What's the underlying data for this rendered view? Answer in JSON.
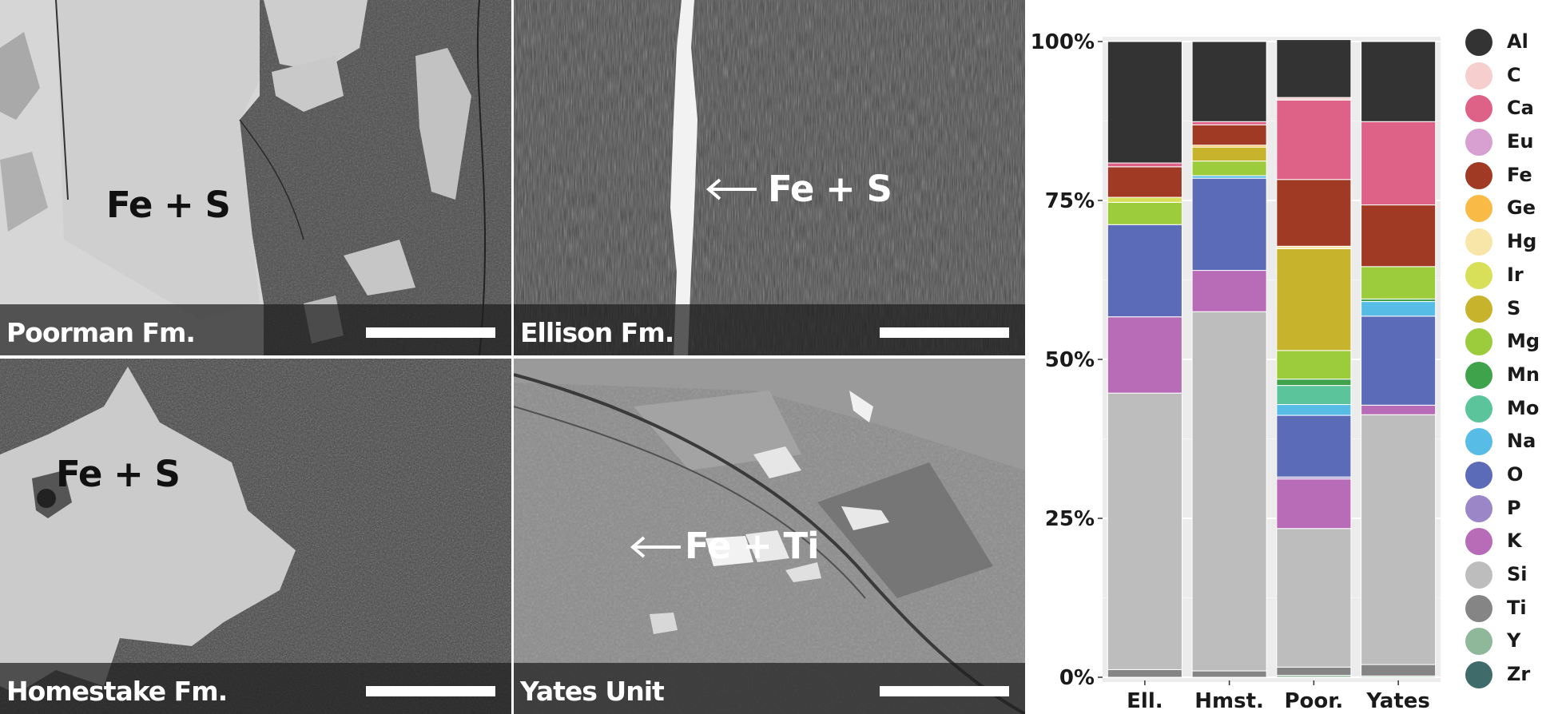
{
  "panels": [
    {
      "id": "poorman",
      "caption": "Poorman Fm.",
      "label": "Fe + S",
      "arrow": false
    },
    {
      "id": "ellison",
      "caption": "Ellison Fm.",
      "label": "Fe + S",
      "arrow": true
    },
    {
      "id": "homestake",
      "caption": "Homestake Fm.",
      "label": "Fe + S",
      "arrow": false
    },
    {
      "id": "yates",
      "caption": "Yates Unit",
      "label": "Fe + Ti",
      "arrow": true
    }
  ],
  "chart_data": {
    "type": "bar",
    "stacked": true,
    "normalized": true,
    "categories": [
      "Ell.",
      "Hmst.",
      "Poor.",
      "Yates"
    ],
    "ylim": [
      0,
      100
    ],
    "yticks": [
      0,
      25,
      50,
      75,
      100
    ],
    "ytick_labels": [
      "0%",
      "25%",
      "50%",
      "75%",
      "100%"
    ],
    "grid": true,
    "legend_position": "right",
    "series": [
      {
        "name": "Zr",
        "color": "#3f6b6b",
        "values": [
          0,
          0,
          0,
          0
        ]
      },
      {
        "name": "Y",
        "color": "#8fb89a",
        "values": [
          0,
          0,
          0.3,
          0.2
        ]
      },
      {
        "name": "Ti",
        "color": "#858585",
        "values": [
          1.2,
          1.0,
          1.3,
          1.8
        ]
      },
      {
        "name": "Si",
        "color": "#bdbdbd",
        "values": [
          43.5,
          56.5,
          21.8,
          39.3
        ]
      },
      {
        "name": "K",
        "color": "#b86cb8",
        "values": [
          12.0,
          6.5,
          7.8,
          1.5
        ]
      },
      {
        "name": "P",
        "color": "#9b87c8",
        "values": [
          0,
          0,
          0.3,
          0
        ]
      },
      {
        "name": "O",
        "color": "#5b6bb8",
        "values": [
          14.5,
          14.5,
          9.7,
          14.0
        ]
      },
      {
        "name": "Na",
        "color": "#58bde6",
        "values": [
          0,
          0.4,
          1.7,
          2.3
        ]
      },
      {
        "name": "Mo",
        "color": "#5cc49a",
        "values": [
          0,
          0,
          3.0,
          0
        ]
      },
      {
        "name": "Mn",
        "color": "#3ea34a",
        "values": [
          0,
          0,
          1.0,
          0.4
        ]
      },
      {
        "name": "Mg",
        "color": "#9ccc3c",
        "values": [
          3.5,
          2.3,
          4.5,
          5.1
        ]
      },
      {
        "name": "S",
        "color": "#c8b32d",
        "values": [
          0,
          2.2,
          16.0,
          0
        ]
      },
      {
        "name": "Ir",
        "color": "#d8e05a",
        "values": [
          0.8,
          0,
          0,
          0
        ]
      },
      {
        "name": "Hg",
        "color": "#f8e6a8",
        "values": [
          0,
          0,
          0.4,
          0
        ]
      },
      {
        "name": "Ge",
        "color": "#f9bb45",
        "values": [
          0,
          0.3,
          0,
          0
        ]
      },
      {
        "name": "Fe",
        "color": "#a13a25",
        "values": [
          4.8,
          3.2,
          10.5,
          9.7
        ]
      },
      {
        "name": "Eu",
        "color": "#d8a0d0",
        "values": [
          0,
          0,
          0,
          0
        ]
      },
      {
        "name": "Ca",
        "color": "#de6188",
        "values": [
          0.6,
          0.5,
          12.5,
          13.1
        ]
      },
      {
        "name": "C",
        "color": "#f6cece",
        "values": [
          0,
          0,
          0.4,
          0
        ]
      },
      {
        "name": "Al",
        "color": "#333333",
        "values": [
          19.1,
          12.6,
          9.1,
          12.6
        ]
      }
    ],
    "legend_order": [
      "Al",
      "C",
      "Ca",
      "Eu",
      "Fe",
      "Ge",
      "Hg",
      "Ir",
      "S",
      "Mg",
      "Mn",
      "Mo",
      "Na",
      "O",
      "P",
      "K",
      "Si",
      "Ti",
      "Y",
      "Zr"
    ]
  }
}
